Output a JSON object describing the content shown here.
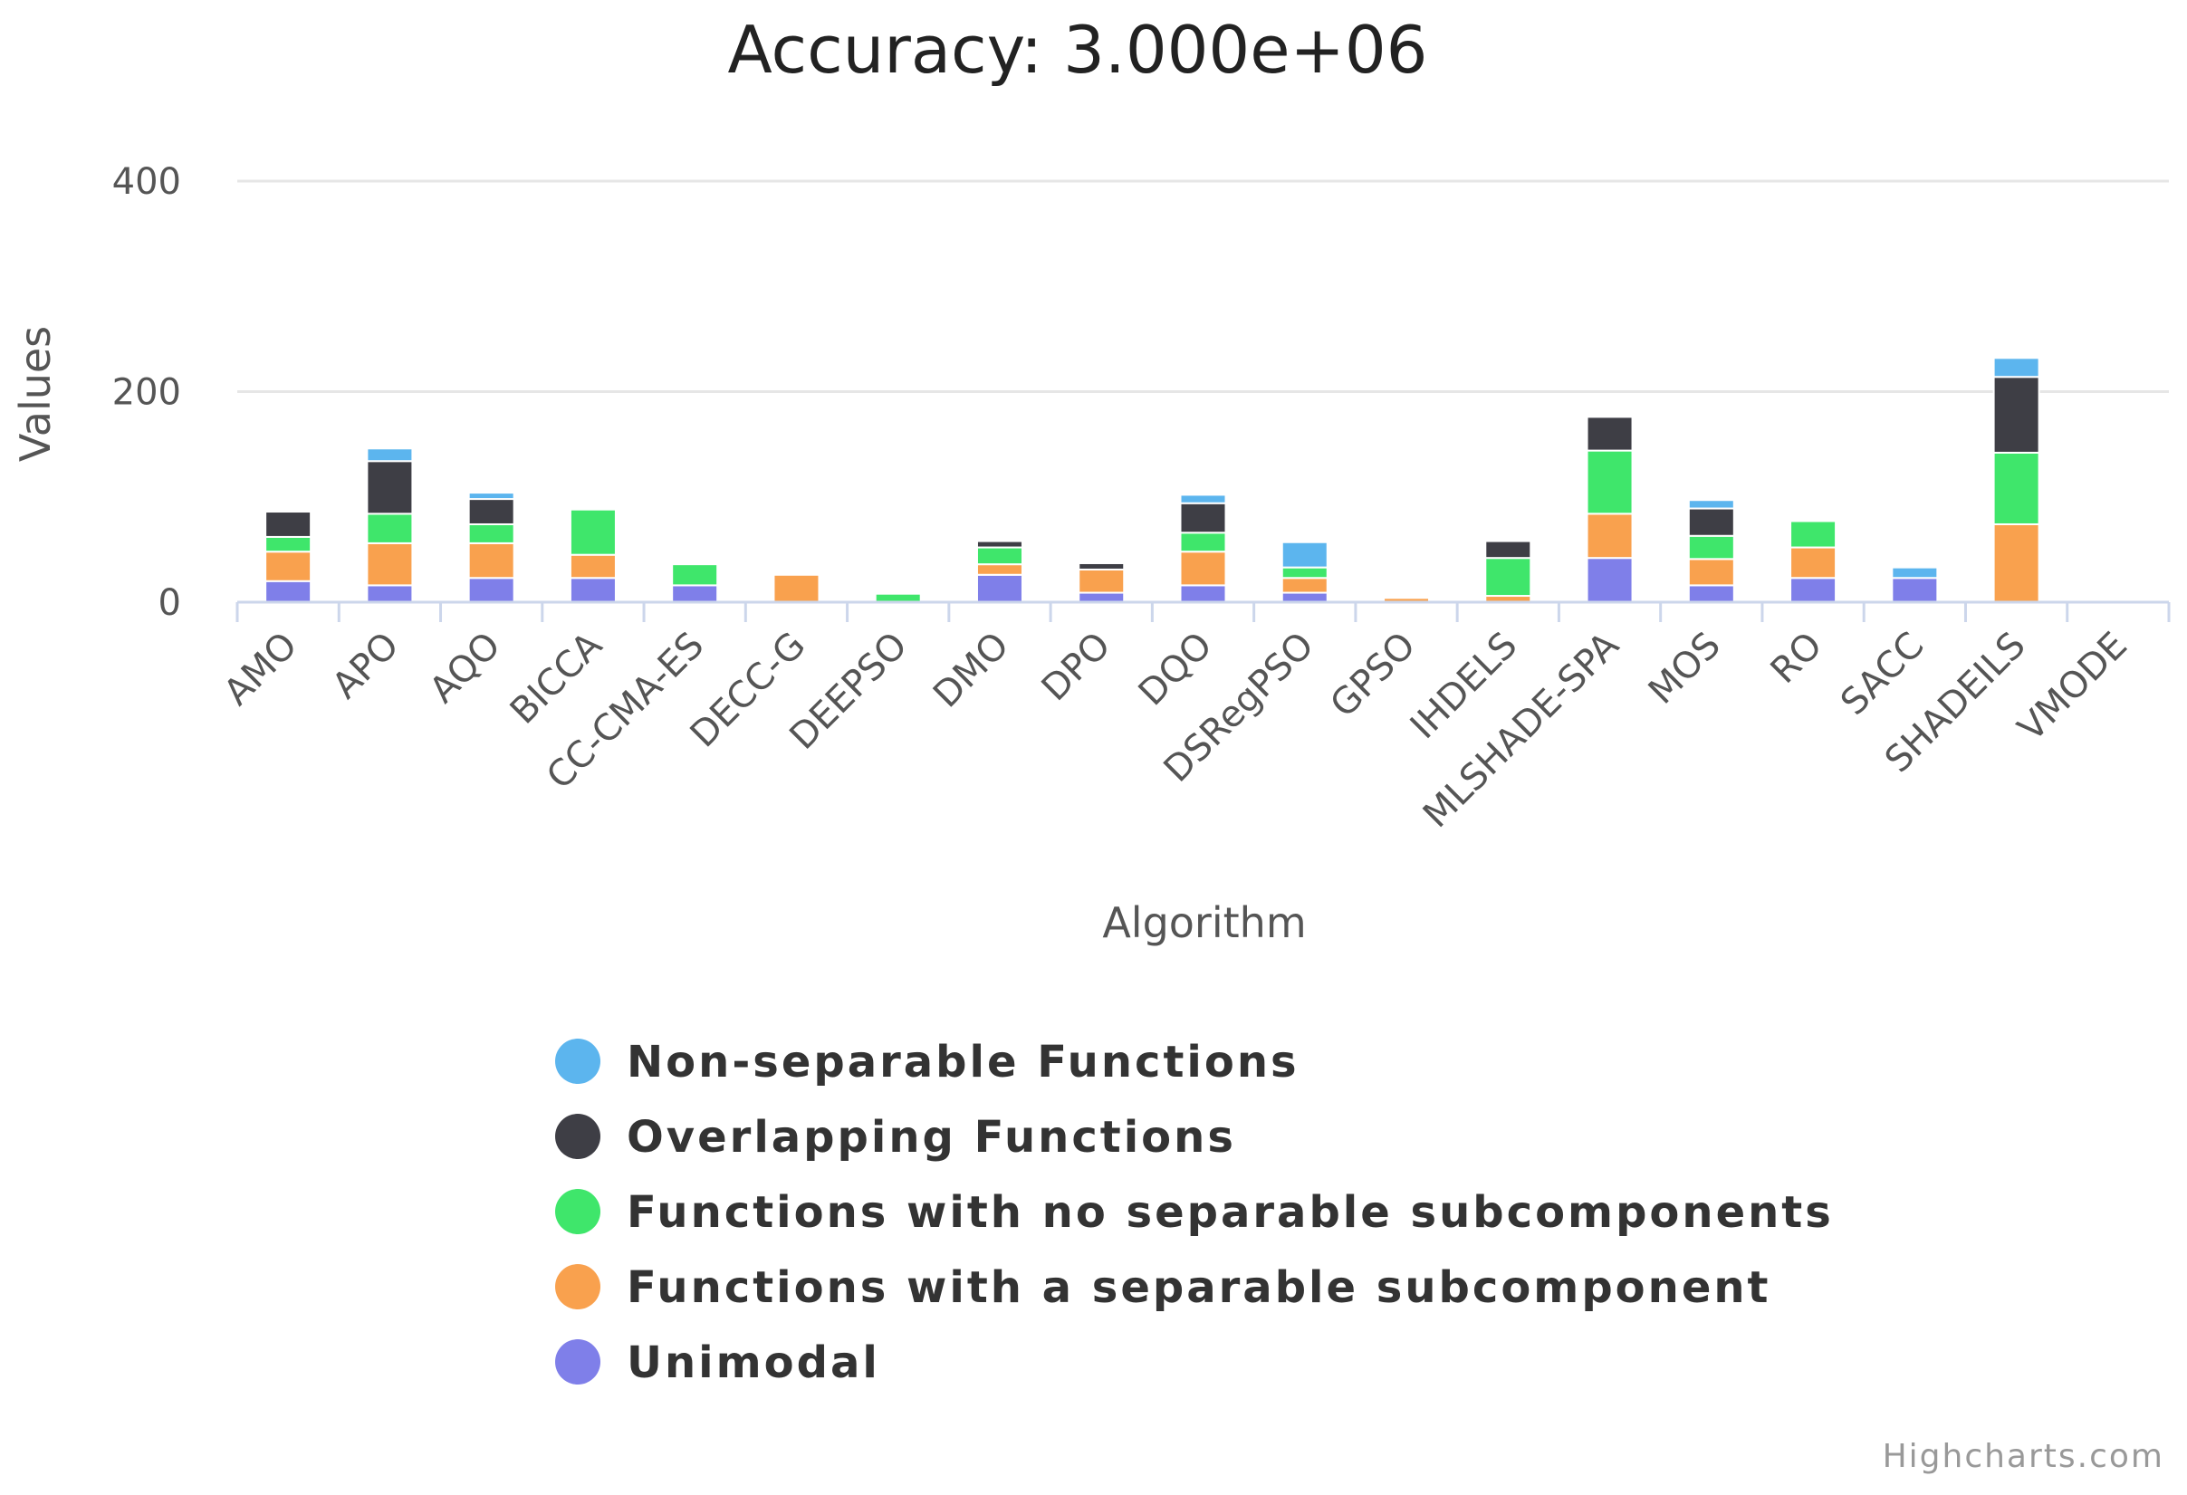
{
  "chart_data": {
    "type": "bar",
    "stacked": true,
    "title": "Accuracy: 3.000e+06",
    "xlabel": "Algorithm",
    "ylabel": "Values",
    "ylim": [
      0,
      400
    ],
    "yticks": [
      0,
      200,
      400
    ],
    "grid": true,
    "legend_position": "bottom",
    "categories": [
      "AMO",
      "APO",
      "AQO",
      "BICCA",
      "CC-CMA-ES",
      "DECC-G",
      "DEEPSO",
      "DMO",
      "DPO",
      "DQO",
      "DSRegPSO",
      "GPSO",
      "IHDELS",
      "MLSHADE-SPA",
      "MOS",
      "RO",
      "SACC",
      "SHADEILS",
      "VMODE"
    ],
    "series": [
      {
        "name": "Unimodal",
        "color": "#7f7fe9",
        "values": [
          20,
          16,
          23,
          23,
          16,
          0,
          0,
          26,
          9,
          16,
          9,
          0,
          0,
          42,
          16,
          23,
          23,
          0,
          0
        ]
      },
      {
        "name": "Functions with a separable subcomponent",
        "color": "#f9a14e",
        "values": [
          28,
          40,
          33,
          22,
          0,
          26,
          0,
          10,
          22,
          32,
          14,
          4,
          6,
          42,
          25,
          29,
          0,
          74,
          0
        ]
      },
      {
        "name": "Functions with no separable subcomponents",
        "color": "#3fe66b",
        "values": [
          14,
          28,
          18,
          43,
          20,
          0,
          8,
          16,
          0,
          18,
          10,
          0,
          36,
          60,
          22,
          25,
          0,
          68,
          0
        ]
      },
      {
        "name": "Overlapping Functions",
        "color": "#3e3e45",
        "values": [
          24,
          50,
          24,
          0,
          0,
          0,
          0,
          6,
          6,
          28,
          0,
          0,
          16,
          32,
          26,
          0,
          0,
          72,
          0
        ]
      },
      {
        "name": "Non-separable Functions",
        "color": "#5cb5ee",
        "values": [
          0,
          12,
          6,
          0,
          0,
          0,
          0,
          0,
          0,
          8,
          24,
          0,
          0,
          0,
          8,
          0,
          10,
          18,
          0
        ]
      }
    ],
    "legend_order": [
      "Non-separable Functions",
      "Overlapping Functions",
      "Functions with no separable subcomponents",
      "Functions with a separable subcomponent",
      "Unimodal"
    ],
    "credits": "Highcharts.com"
  }
}
